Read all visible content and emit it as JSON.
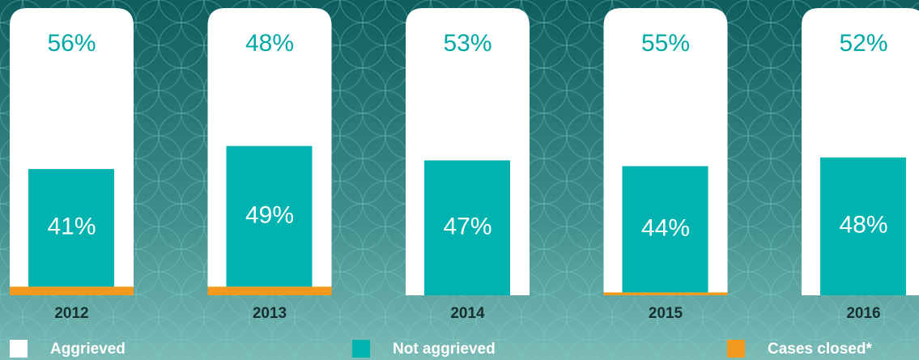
{
  "chart_data": {
    "type": "bar",
    "categories": [
      "2012",
      "2013",
      "2014",
      "2015",
      "2016"
    ],
    "series": [
      {
        "name": "Cases closed*",
        "color": "#f39a1e",
        "values": [
          3,
          3,
          0,
          1,
          0
        ]
      },
      {
        "name": "Not aggrieved",
        "color": "#00b3b0",
        "values": [
          41,
          49,
          47,
          44,
          48
        ],
        "value_labels": [
          "41%",
          "49%",
          "47%",
          "44%",
          "48%"
        ]
      },
      {
        "name": "Aggrieved",
        "color": "#ffffff",
        "values": [
          56,
          48,
          53,
          55,
          52
        ],
        "value_labels": [
          "56%",
          "48%",
          "53%",
          "55%",
          "52%"
        ]
      }
    ],
    "ylim": [
      0,
      100
    ]
  }
}
